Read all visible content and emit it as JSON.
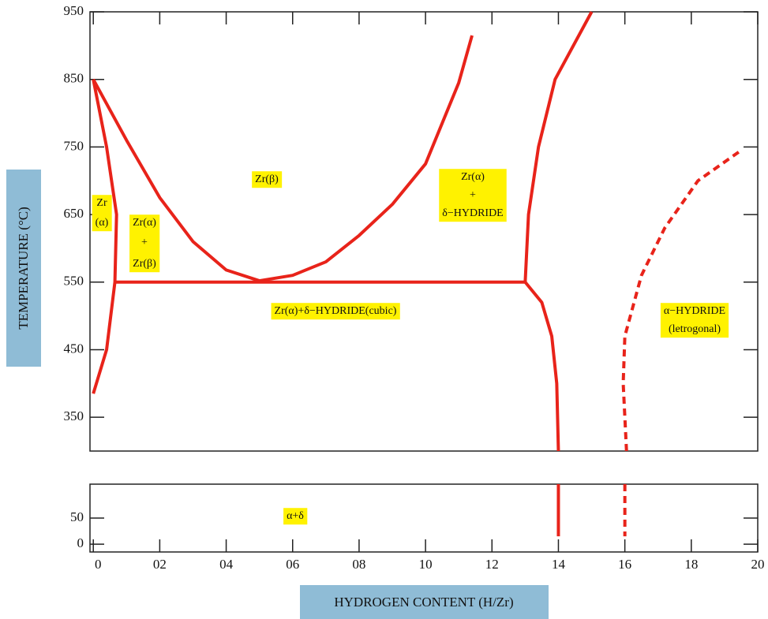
{
  "chart_data": [
    {
      "type": "line",
      "ylabel": "TEMPERATURE (°C)",
      "ylim": [
        300,
        950
      ],
      "yticks": [
        350,
        450,
        550,
        650,
        750,
        850,
        950
      ],
      "xlim": [
        -0.1,
        20
      ],
      "series": [
        {
          "color": "#e8231a",
          "x": [
            0,
            0.4,
            0.7,
            0.65,
            0.4,
            0
          ],
          "values": [
            850,
            750,
            650,
            550,
            450,
            385
          ]
        },
        {
          "color": "#e8231a",
          "x": [
            0,
            1,
            2,
            3,
            4,
            5
          ],
          "values": [
            850,
            760,
            675,
            610,
            568,
            552
          ]
        },
        {
          "color": "#e8231a",
          "x": [
            5,
            6,
            7,
            8,
            9,
            10,
            11,
            11.4
          ],
          "values": [
            552,
            560,
            580,
            619,
            665,
            725,
            845,
            915
          ]
        },
        {
          "color": "#e8231a",
          "x": [
            0.65,
            13
          ],
          "values": [
            550,
            550
          ]
        },
        {
          "color": "#e8231a",
          "x": [
            13,
            13.1,
            13.4,
            13.9,
            15
          ],
          "values": [
            550,
            650,
            750,
            850,
            950
          ]
        },
        {
          "color": "#e8231a",
          "x": [
            13,
            13.5,
            13.8,
            13.95,
            14
          ],
          "values": [
            550,
            520,
            470,
            400,
            300
          ]
        },
        {
          "color": "#e8231a",
          "linestyle": "dashed",
          "x": [
            16.05,
            15.95,
            16,
            16.5,
            17.2,
            18.2,
            19.5
          ],
          "values": [
            300,
            400,
            470,
            560,
            630,
            700,
            745
          ]
        }
      ],
      "annotations": [
        [
          "Zr(β)"
        ],
        [
          "Zr",
          "(α)"
        ],
        [
          "Zr(α)",
          "+",
          "Zr(β)"
        ],
        [
          "Zr(α)",
          "+",
          "δ−HYDRIDE"
        ],
        [
          "Zr(α)+δ−HYDRIDE(cubic)"
        ],
        [
          "α−HYDRIDE",
          "(letrogonal)"
        ]
      ]
    },
    {
      "type": "line",
      "xlabel": "HYDROGEN CONTENT (H/Zr)",
      "ylim": [
        -15,
        115
      ],
      "yticks": [
        0,
        50
      ],
      "xlim": [
        -0.1,
        20
      ],
      "xticks": [
        0,
        {
          "value": 2,
          "label": "02"
        },
        {
          "value": 4,
          "label": "04"
        },
        {
          "value": 6,
          "label": "06"
        },
        {
          "value": 8,
          "label": "08"
        },
        10,
        12,
        14,
        16,
        18,
        20
      ],
      "series": [
        {
          "color": "#e8231a",
          "x": [
            14,
            14
          ],
          "values": [
            115,
            15
          ]
        },
        {
          "color": "#e8231a",
          "linestyle": "dashed",
          "x": [
            16,
            16
          ],
          "values": [
            115,
            15
          ]
        }
      ],
      "annotations": [
        [
          "α+δ"
        ]
      ]
    }
  ]
}
